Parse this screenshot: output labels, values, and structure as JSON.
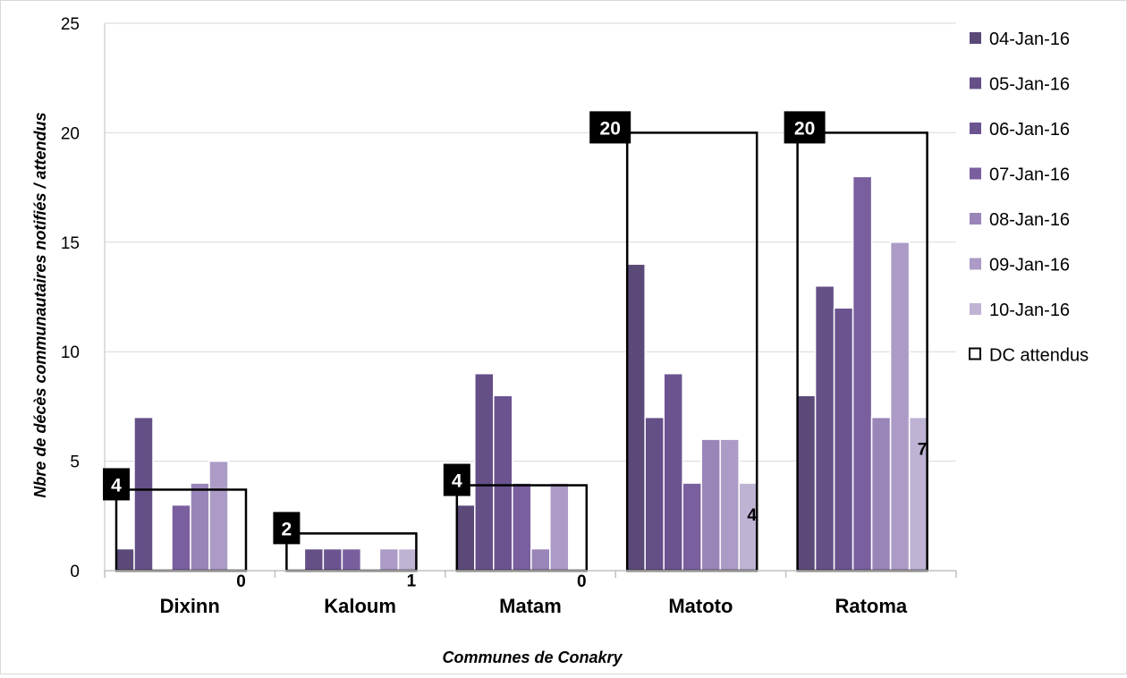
{
  "chart_data": {
    "type": "bar",
    "title": "",
    "xlabel": "Communes de Conakry",
    "ylabel": "Nbre de décès communautaires notifiés / attendus",
    "ylim": [
      0,
      25
    ],
    "yticks": [
      0,
      5,
      10,
      15,
      20,
      25
    ],
    "grid": true,
    "legend_position": "right",
    "categories": [
      "Dixinn",
      "Kaloum",
      "Matam",
      "Matoto",
      "Ratoma"
    ],
    "series": [
      {
        "name": "04-Jan-16",
        "color": "#5b4a78",
        "values": [
          1,
          0,
          3,
          14,
          8
        ]
      },
      {
        "name": "05-Jan-16",
        "color": "#654f87",
        "values": [
          7,
          1,
          9,
          7,
          13
        ]
      },
      {
        "name": "06-Jan-16",
        "color": "#6b5390",
        "values": [
          0,
          1,
          8,
          9,
          12
        ]
      },
      {
        "name": "07-Jan-16",
        "color": "#7a5f9f",
        "values": [
          3,
          1,
          4,
          4,
          18
        ]
      },
      {
        "name": "08-Jan-16",
        "color": "#9a85b8",
        "values": [
          4,
          0,
          1,
          6,
          7
        ]
      },
      {
        "name": "09-Jan-16",
        "color": "#ab9bc6",
        "values": [
          5,
          1,
          4,
          6,
          15
        ]
      },
      {
        "name": "10-Jan-16",
        "color": "#bfb3d4",
        "values": [
          0,
          1,
          0,
          4,
          7
        ]
      }
    ],
    "expected": {
      "name": "DC attendus",
      "values": [
        3.7,
        1.7,
        3.9,
        20,
        20
      ],
      "labels": [
        "4",
        "2",
        "4",
        "20",
        "20"
      ]
    },
    "last_day_labels": [
      "0",
      "1",
      "0",
      "4",
      "7"
    ]
  }
}
